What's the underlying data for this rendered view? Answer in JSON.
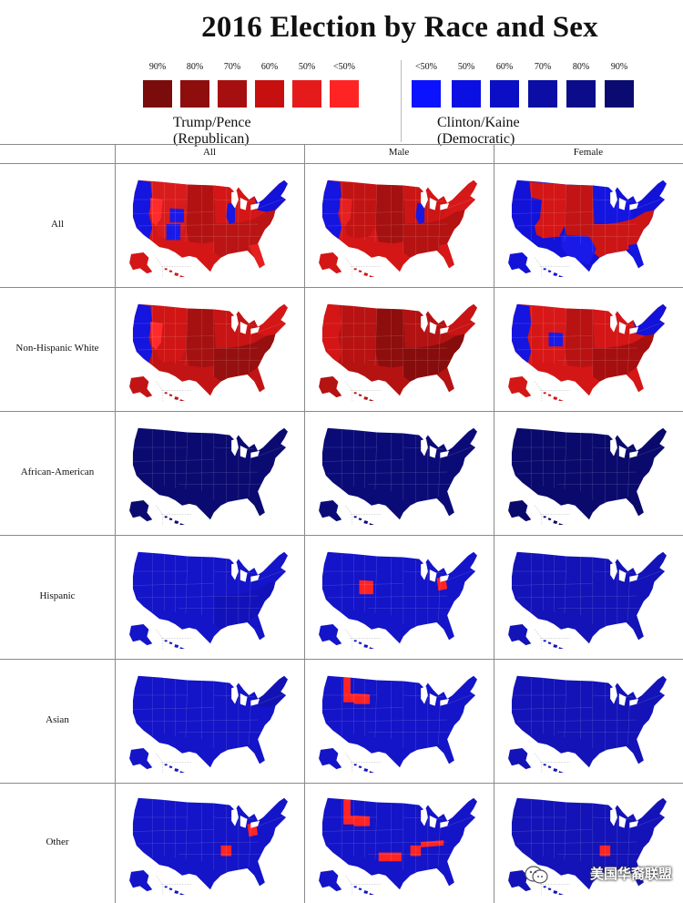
{
  "title": "2016 Election by Race and Sex",
  "legend": {
    "republican": {
      "label": "Trump/Pence (Republican)",
      "levels": [
        {
          "label": "90%",
          "color": "#7a0c0c"
        },
        {
          "label": "80%",
          "color": "#8e0d0d"
        },
        {
          "label": "70%",
          "color": "#a60f0f"
        },
        {
          "label": "60%",
          "color": "#c61010"
        },
        {
          "label": "50%",
          "color": "#e51b1b"
        },
        {
          "label": "<50%",
          "color": "#ff2424"
        }
      ]
    },
    "democratic": {
      "label": "Clinton/Kaine (Democratic)",
      "levels": [
        {
          "label": "<50%",
          "color": "#0a12ff"
        },
        {
          "label": "50%",
          "color": "#0a10e2"
        },
        {
          "label": "60%",
          "color": "#0a0ec4"
        },
        {
          "label": "70%",
          "color": "#0b0da4"
        },
        {
          "label": "80%",
          "color": "#0b0c8a"
        },
        {
          "label": "90%",
          "color": "#0a0a70"
        }
      ]
    }
  },
  "columns": [
    "All",
    "Male",
    "Female"
  ],
  "rows": [
    "All",
    "Non-Hispanic White",
    "African-American",
    "Hispanic",
    "Asian",
    "Other"
  ],
  "maps": [
    [
      {
        "base": "#d41616",
        "patches": [
          [
            "west",
            "#1515e0"
          ],
          [
            "nevada",
            "#ff2a2a"
          ],
          [
            "mountain",
            "#d81c1c"
          ],
          [
            "colorado",
            "#1a1ae8"
          ],
          [
            "newmexico",
            "#1a1ae8"
          ],
          [
            "plains",
            "#b31212"
          ],
          [
            "midwest",
            "#d41616"
          ],
          [
            "northeast",
            "#1212d8"
          ],
          [
            "south",
            "#bb1414"
          ],
          [
            "florida",
            "#e52020"
          ],
          [
            "illinois",
            "#1818e0"
          ]
        ]
      },
      {
        "base": "#d41616",
        "patches": [
          [
            "west",
            "#1515e0"
          ],
          [
            "nevada",
            "#e52020"
          ],
          [
            "mountain",
            "#c21313"
          ],
          [
            "plains",
            "#a51010"
          ],
          [
            "midwest",
            "#cc1515"
          ],
          [
            "northeast",
            "#d61818"
          ],
          [
            "south",
            "#b51212"
          ],
          [
            "florida",
            "#d81818"
          ],
          [
            "illinois",
            "#1818e0"
          ]
        ]
      },
      {
        "base": "#1212d8",
        "patches": [
          [
            "mountain",
            "#d41616"
          ],
          [
            "plains",
            "#c21414"
          ],
          [
            "south",
            "#cc1515"
          ],
          [
            "texas",
            "#1a1ae8"
          ],
          [
            "midwest",
            "#1515e0"
          ],
          [
            "florida",
            "#1515e0"
          ]
        ]
      }
    ],
    [
      {
        "base": "#c21414",
        "patches": [
          [
            "west",
            "#1515e0"
          ],
          [
            "nevada",
            "#ff2a2a"
          ],
          [
            "mountain",
            "#d01515"
          ],
          [
            "plains",
            "#a51010"
          ],
          [
            "south",
            "#961010"
          ],
          [
            "northeast",
            "#d41616"
          ],
          [
            "midwest",
            "#c81414"
          ]
        ]
      },
      {
        "base": "#b51212",
        "patches": [
          [
            "west",
            "#d41616"
          ],
          [
            "mountain",
            "#b81212"
          ],
          [
            "plains",
            "#8e0d0d"
          ],
          [
            "south",
            "#870d0d"
          ],
          [
            "northeast",
            "#c81414"
          ],
          [
            "midwest",
            "#b31212"
          ]
        ]
      },
      {
        "base": "#d41616",
        "patches": [
          [
            "west",
            "#1515e0"
          ],
          [
            "mountain",
            "#d81818"
          ],
          [
            "colorado",
            "#1a1ae8"
          ],
          [
            "plains",
            "#b81212"
          ],
          [
            "south",
            "#a60f0f"
          ],
          [
            "northeast",
            "#1212d8"
          ],
          [
            "midwest",
            "#d41616"
          ]
        ]
      }
    ],
    [
      {
        "base": "#0a0a70",
        "patches": []
      },
      {
        "base": "#0b0b78",
        "patches": []
      },
      {
        "base": "#0a0a6c",
        "patches": []
      }
    ],
    [
      {
        "base": "#1414c8",
        "patches": [
          [
            "south",
            "#1212bb"
          ]
        ]
      },
      {
        "base": "#1414c8",
        "patches": [
          [
            "colorado",
            "#ff2424"
          ],
          [
            "ohio",
            "#ff2424"
          ]
        ]
      },
      {
        "base": "#1313b8",
        "patches": []
      }
    ],
    [
      {
        "base": "#1414c8",
        "patches": [
          [
            "northeast",
            "#1212b4"
          ]
        ]
      },
      {
        "base": "#1414c8",
        "patches": [
          [
            "idaho",
            "#ff2424"
          ],
          [
            "wyoming",
            "#ff2424"
          ]
        ]
      },
      {
        "base": "#1313b8",
        "patches": []
      }
    ],
    [
      {
        "base": "#1414c8",
        "patches": [
          [
            "arkansas",
            "#ff2424"
          ],
          [
            "ohio",
            "#ff2424"
          ]
        ]
      },
      {
        "base": "#1414c8",
        "patches": [
          [
            "idaho",
            "#ff2424"
          ],
          [
            "wyoming",
            "#ff2424"
          ],
          [
            "texasnorth",
            "#ff2424"
          ],
          [
            "arkansas",
            "#ff2424"
          ],
          [
            "tennessee",
            "#ff2424"
          ]
        ]
      },
      {
        "base": "#1313b8",
        "patches": [
          [
            "arkansas",
            "#ff2424"
          ]
        ]
      }
    ]
  ],
  "watermark": "美国华裔联盟"
}
